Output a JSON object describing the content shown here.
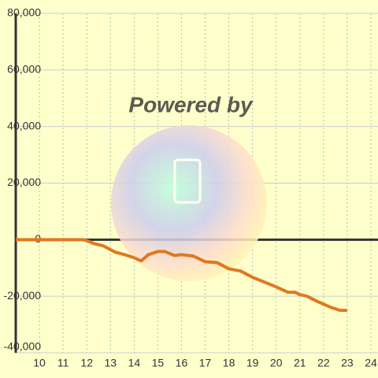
{
  "chart_data": {
    "type": "line",
    "watermark": "Powered by",
    "x": [
      9,
      11.8,
      12,
      12.3,
      12.7,
      13.2,
      13.6,
      14.0,
      14.3,
      14.6,
      15,
      15.3,
      15.7,
      16,
      16.5,
      17,
      17.5,
      18,
      18.5,
      19,
      19.5,
      20,
      20.5,
      20.8,
      21.0,
      21.3,
      21.7,
      22,
      22.3,
      22.7,
      23
    ],
    "series": [
      {
        "color": "#e07820",
        "values": [
          0,
          0,
          -300,
          -1400,
          -2200,
          -4400,
          -5300,
          -6400,
          -7500,
          -5300,
          -4200,
          -4200,
          -5600,
          -5300,
          -5800,
          -7800,
          -8100,
          -10300,
          -11100,
          -13300,
          -15000,
          -16700,
          -18600,
          -18600,
          -19400,
          -20000,
          -21700,
          -22800,
          -23900,
          -25000,
          -25000
        ]
      }
    ],
    "xlim": [
      9,
      24.3
    ],
    "xticks": [
      10,
      11,
      12,
      13,
      14,
      15,
      16,
      17,
      18,
      19,
      20,
      21,
      22,
      23,
      24
    ],
    "ylim": [
      -40000,
      80000
    ],
    "yticks": [
      {
        "value": -40000,
        "label": "-40,000"
      },
      {
        "value": -20000,
        "label": "-20,000"
      },
      0,
      {
        "value": 20000,
        "label": "20,000"
      },
      {
        "value": 40000,
        "label": "40,000"
      },
      {
        "value": 60000,
        "label": "60,000"
      },
      {
        "value": 80000,
        "label": "80,000"
      }
    ],
    "grid": true
  }
}
